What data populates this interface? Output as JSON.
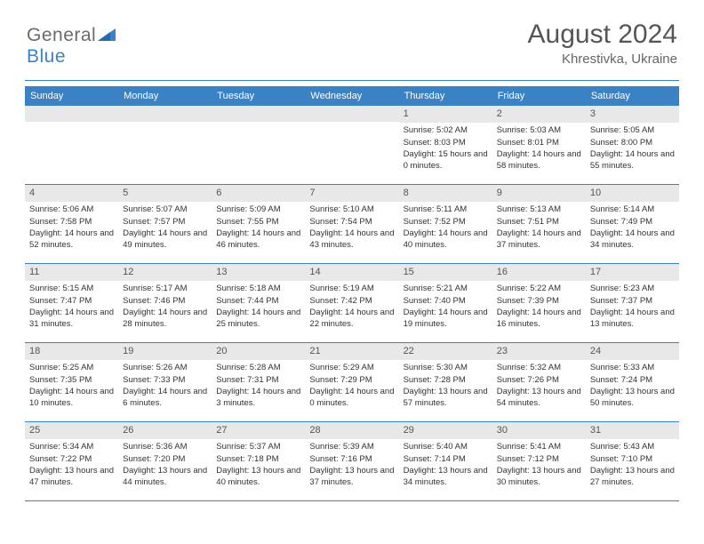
{
  "logo": {
    "text_gray": "General",
    "text_blue": "Blue"
  },
  "header": {
    "month": "August 2024",
    "location": "Khrestivka, Ukraine"
  },
  "colors": {
    "accent": "#3b82c4",
    "header_text": "#ffffff",
    "daynum_bg": "#e8e8e8",
    "text": "#333333",
    "title_text": "#555555"
  },
  "day_names": [
    "Sunday",
    "Monday",
    "Tuesday",
    "Wednesday",
    "Thursday",
    "Friday",
    "Saturday"
  ],
  "weeks": [
    [
      {
        "n": "",
        "sr": "",
        "ss": "",
        "dl": ""
      },
      {
        "n": "",
        "sr": "",
        "ss": "",
        "dl": ""
      },
      {
        "n": "",
        "sr": "",
        "ss": "",
        "dl": ""
      },
      {
        "n": "",
        "sr": "",
        "ss": "",
        "dl": ""
      },
      {
        "n": "1",
        "sr": "Sunrise: 5:02 AM",
        "ss": "Sunset: 8:03 PM",
        "dl": "Daylight: 15 hours and 0 minutes."
      },
      {
        "n": "2",
        "sr": "Sunrise: 5:03 AM",
        "ss": "Sunset: 8:01 PM",
        "dl": "Daylight: 14 hours and 58 minutes."
      },
      {
        "n": "3",
        "sr": "Sunrise: 5:05 AM",
        "ss": "Sunset: 8:00 PM",
        "dl": "Daylight: 14 hours and 55 minutes."
      }
    ],
    [
      {
        "n": "4",
        "sr": "Sunrise: 5:06 AM",
        "ss": "Sunset: 7:58 PM",
        "dl": "Daylight: 14 hours and 52 minutes."
      },
      {
        "n": "5",
        "sr": "Sunrise: 5:07 AM",
        "ss": "Sunset: 7:57 PM",
        "dl": "Daylight: 14 hours and 49 minutes."
      },
      {
        "n": "6",
        "sr": "Sunrise: 5:09 AM",
        "ss": "Sunset: 7:55 PM",
        "dl": "Daylight: 14 hours and 46 minutes."
      },
      {
        "n": "7",
        "sr": "Sunrise: 5:10 AM",
        "ss": "Sunset: 7:54 PM",
        "dl": "Daylight: 14 hours and 43 minutes."
      },
      {
        "n": "8",
        "sr": "Sunrise: 5:11 AM",
        "ss": "Sunset: 7:52 PM",
        "dl": "Daylight: 14 hours and 40 minutes."
      },
      {
        "n": "9",
        "sr": "Sunrise: 5:13 AM",
        "ss": "Sunset: 7:51 PM",
        "dl": "Daylight: 14 hours and 37 minutes."
      },
      {
        "n": "10",
        "sr": "Sunrise: 5:14 AM",
        "ss": "Sunset: 7:49 PM",
        "dl": "Daylight: 14 hours and 34 minutes."
      }
    ],
    [
      {
        "n": "11",
        "sr": "Sunrise: 5:15 AM",
        "ss": "Sunset: 7:47 PM",
        "dl": "Daylight: 14 hours and 31 minutes."
      },
      {
        "n": "12",
        "sr": "Sunrise: 5:17 AM",
        "ss": "Sunset: 7:46 PM",
        "dl": "Daylight: 14 hours and 28 minutes."
      },
      {
        "n": "13",
        "sr": "Sunrise: 5:18 AM",
        "ss": "Sunset: 7:44 PM",
        "dl": "Daylight: 14 hours and 25 minutes."
      },
      {
        "n": "14",
        "sr": "Sunrise: 5:19 AM",
        "ss": "Sunset: 7:42 PM",
        "dl": "Daylight: 14 hours and 22 minutes."
      },
      {
        "n": "15",
        "sr": "Sunrise: 5:21 AM",
        "ss": "Sunset: 7:40 PM",
        "dl": "Daylight: 14 hours and 19 minutes."
      },
      {
        "n": "16",
        "sr": "Sunrise: 5:22 AM",
        "ss": "Sunset: 7:39 PM",
        "dl": "Daylight: 14 hours and 16 minutes."
      },
      {
        "n": "17",
        "sr": "Sunrise: 5:23 AM",
        "ss": "Sunset: 7:37 PM",
        "dl": "Daylight: 14 hours and 13 minutes."
      }
    ],
    [
      {
        "n": "18",
        "sr": "Sunrise: 5:25 AM",
        "ss": "Sunset: 7:35 PM",
        "dl": "Daylight: 14 hours and 10 minutes."
      },
      {
        "n": "19",
        "sr": "Sunrise: 5:26 AM",
        "ss": "Sunset: 7:33 PM",
        "dl": "Daylight: 14 hours and 6 minutes."
      },
      {
        "n": "20",
        "sr": "Sunrise: 5:28 AM",
        "ss": "Sunset: 7:31 PM",
        "dl": "Daylight: 14 hours and 3 minutes."
      },
      {
        "n": "21",
        "sr": "Sunrise: 5:29 AM",
        "ss": "Sunset: 7:29 PM",
        "dl": "Daylight: 14 hours and 0 minutes."
      },
      {
        "n": "22",
        "sr": "Sunrise: 5:30 AM",
        "ss": "Sunset: 7:28 PM",
        "dl": "Daylight: 13 hours and 57 minutes."
      },
      {
        "n": "23",
        "sr": "Sunrise: 5:32 AM",
        "ss": "Sunset: 7:26 PM",
        "dl": "Daylight: 13 hours and 54 minutes."
      },
      {
        "n": "24",
        "sr": "Sunrise: 5:33 AM",
        "ss": "Sunset: 7:24 PM",
        "dl": "Daylight: 13 hours and 50 minutes."
      }
    ],
    [
      {
        "n": "25",
        "sr": "Sunrise: 5:34 AM",
        "ss": "Sunset: 7:22 PM",
        "dl": "Daylight: 13 hours and 47 minutes."
      },
      {
        "n": "26",
        "sr": "Sunrise: 5:36 AM",
        "ss": "Sunset: 7:20 PM",
        "dl": "Daylight: 13 hours and 44 minutes."
      },
      {
        "n": "27",
        "sr": "Sunrise: 5:37 AM",
        "ss": "Sunset: 7:18 PM",
        "dl": "Daylight: 13 hours and 40 minutes."
      },
      {
        "n": "28",
        "sr": "Sunrise: 5:39 AM",
        "ss": "Sunset: 7:16 PM",
        "dl": "Daylight: 13 hours and 37 minutes."
      },
      {
        "n": "29",
        "sr": "Sunrise: 5:40 AM",
        "ss": "Sunset: 7:14 PM",
        "dl": "Daylight: 13 hours and 34 minutes."
      },
      {
        "n": "30",
        "sr": "Sunrise: 5:41 AM",
        "ss": "Sunset: 7:12 PM",
        "dl": "Daylight: 13 hours and 30 minutes."
      },
      {
        "n": "31",
        "sr": "Sunrise: 5:43 AM",
        "ss": "Sunset: 7:10 PM",
        "dl": "Daylight: 13 hours and 27 minutes."
      }
    ]
  ]
}
